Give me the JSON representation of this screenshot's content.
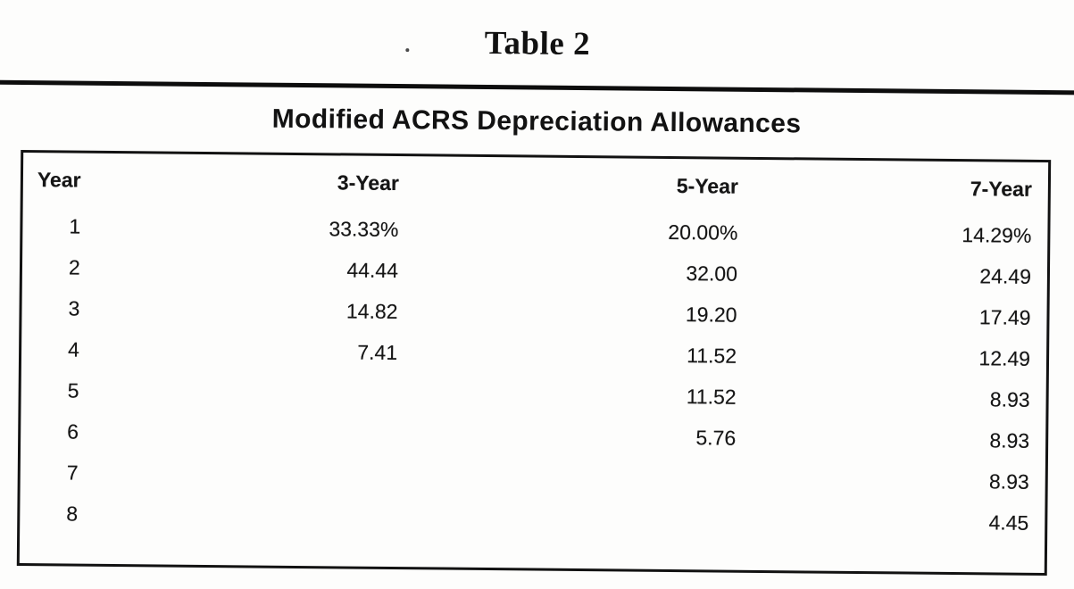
{
  "page": {
    "background_color": "#fdfdfc",
    "ink_color": "#141414"
  },
  "document": {
    "table_label": "Table 2",
    "table_title": "Modified ACRS Depreciation Allowances"
  },
  "chart_data": {
    "type": "table",
    "caption": "Table 2",
    "title": "Modified ACRS Depreciation Allowances",
    "columns": [
      "Year",
      "3-Year",
      "5-Year",
      "7-Year"
    ],
    "rows": [
      [
        "1",
        "33.33%",
        "20.00%",
        "14.29%"
      ],
      [
        "2",
        "44.44",
        "32.00",
        "24.49"
      ],
      [
        "3",
        "14.82",
        "19.20",
        "17.49"
      ],
      [
        "4",
        "7.41",
        "11.52",
        "12.49"
      ],
      [
        "5",
        "",
        "11.52",
        "8.93"
      ],
      [
        "6",
        "",
        "5.76",
        "8.93"
      ],
      [
        "7",
        "",
        "",
        "8.93"
      ],
      [
        "8",
        "",
        "",
        "4.45"
      ]
    ]
  }
}
